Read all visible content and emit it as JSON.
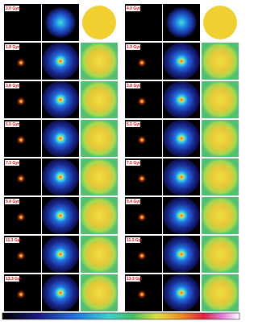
{
  "panels": {
    "left_labels": [
      "2.0 Gyr",
      "1.8 Gyr",
      "3.8 Gyr",
      "5.5 Gyr",
      "7.3 Gyr",
      "9.4 Gyr",
      "11.3 Gyr",
      "13.3 Gyr"
    ],
    "right_labels": [
      "4.0 Gyr",
      "1.9 Gyr",
      "3.8 Gyr",
      "5.5 Gyr",
      "7.5 Gyr",
      "9.4 Gyr",
      "11.3 Gyr",
      "13.3 Gyr"
    ]
  }
}
